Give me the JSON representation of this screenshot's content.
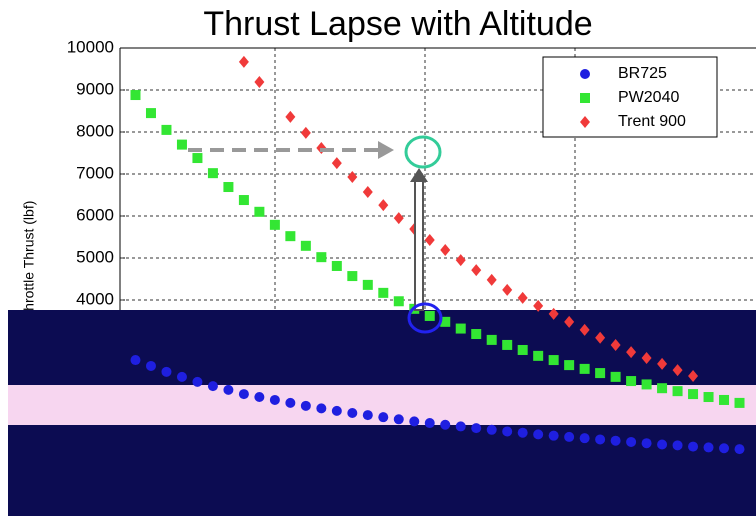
{
  "chart_data": {
    "type": "scatter",
    "title": "Thrust Lapse with Altitude",
    "y_label": "Throttle Thrust (lbf)",
    "xlim": [
      0,
      41
    ],
    "ylim": [
      0,
      10000
    ],
    "yticks": [
      4000,
      5000,
      6000,
      7000,
      8000,
      9000,
      10000
    ],
    "grid": true,
    "legend": "upper right",
    "series": [
      {
        "name": "BR725",
        "color": "#1f1fe0",
        "marker": "circle",
        "x": [
          1,
          2,
          3,
          4,
          5,
          6,
          7,
          8,
          9,
          10,
          11,
          12,
          13,
          14,
          15,
          16,
          17,
          18,
          19,
          20,
          21,
          22,
          23,
          24,
          25,
          26,
          27,
          28,
          29,
          30,
          31,
          32,
          33,
          34,
          35,
          36,
          37,
          38,
          39,
          40
        ],
        "values": [
          2570,
          2430,
          2290,
          2170,
          2050,
          1950,
          1860,
          1760,
          1690,
          1620,
          1550,
          1480,
          1420,
          1360,
          1310,
          1260,
          1210,
          1160,
          1110,
          1070,
          1030,
          990,
          950,
          910,
          870,
          840,
          800,
          770,
          740,
          710,
          680,
          650,
          620,
          590,
          560,
          540,
          510,
          490,
          470,
          450
        ]
      },
      {
        "name": "PW2040",
        "color": "#33e633",
        "marker": "square",
        "x": [
          1,
          2,
          3,
          4,
          5,
          6,
          7,
          8,
          9,
          10,
          11,
          12,
          13,
          14,
          15,
          16,
          17,
          18,
          19,
          20,
          21,
          22,
          23,
          24,
          25,
          26,
          27,
          28,
          29,
          30,
          31,
          32,
          33,
          34,
          35,
          36,
          37,
          38,
          39,
          40
        ],
        "values": [
          8880,
          8450,
          8050,
          7700,
          7380,
          7020,
          6690,
          6380,
          6100,
          5790,
          5520,
          5290,
          5020,
          4810,
          4570,
          4360,
          4170,
          3970,
          3790,
          3620,
          3480,
          3320,
          3190,
          3050,
          2930,
          2810,
          2670,
          2570,
          2450,
          2360,
          2260,
          2170,
          2070,
          1990,
          1900,
          1830,
          1760,
          1690,
          1620,
          1550
        ]
      },
      {
        "name": "Trent 900",
        "color": "#f03a3a",
        "marker": "diamond",
        "x": [
          8,
          9,
          11,
          12,
          13,
          14,
          15,
          16,
          17,
          18,
          19,
          20,
          21,
          22,
          23,
          24,
          25,
          26,
          27,
          28,
          29,
          30,
          31,
          32,
          33,
          34,
          35,
          36,
          37
        ],
        "values": [
          9670,
          9190,
          8360,
          7980,
          7620,
          7260,
          6930,
          6570,
          6260,
          5950,
          5690,
          5430,
          5190,
          4950,
          4710,
          4480,
          4240,
          4050,
          3860,
          3670,
          3480,
          3290,
          3100,
          2930,
          2760,
          2620,
          2480,
          2330,
          2190
        ]
      }
    ]
  }
}
